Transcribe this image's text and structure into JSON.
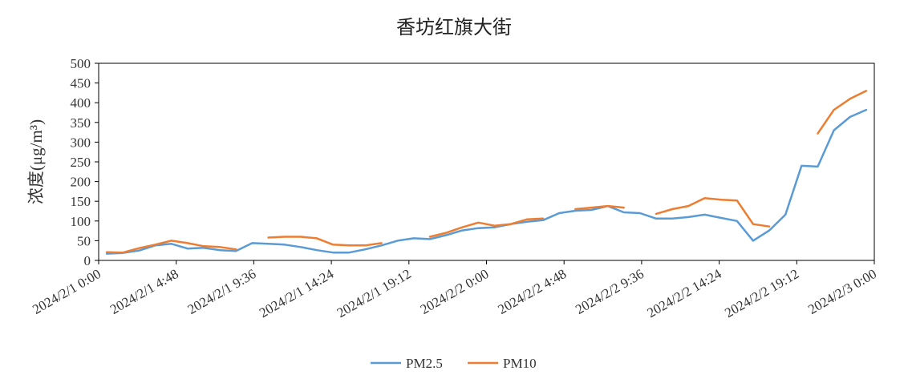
{
  "chart_data": {
    "type": "line",
    "title": "香坊红旗大街",
    "ylabel": "浓度(μg/m³)",
    "xlabel": "",
    "ylim": [
      0,
      500
    ],
    "yticks": [
      0,
      50,
      100,
      150,
      200,
      250,
      300,
      350,
      400,
      450,
      500
    ],
    "xtick_labels": [
      "2024/2/1 0:00",
      "2024/2/1 4:48",
      "2024/2/1 9:36",
      "2024/2/1 14:24",
      "2024/2/1 19:12",
      "2024/2/2 0:00",
      "2024/2/2 4:48",
      "2024/2/2 9:36",
      "2024/2/2 14:24",
      "2024/2/2 19:12",
      "2024/2/3 0:00"
    ],
    "xticks_hours": [
      0,
      4.8,
      9.6,
      14.4,
      19.2,
      24,
      28.8,
      33.6,
      38.4,
      43.2,
      48
    ],
    "grid": false,
    "legend": "bottom",
    "series": [
      {
        "name": "PM2.5",
        "color": "#5b9bd5",
        "values": [
          17,
          19,
          25,
          38,
          42,
          30,
          32,
          26,
          24,
          44,
          42,
          40,
          34,
          26,
          20,
          20,
          28,
          38,
          50,
          56,
          54,
          64,
          76,
          82,
          84,
          92,
          98,
          102,
          120,
          126,
          128,
          138,
          122,
          120,
          106,
          106,
          110,
          116,
          108,
          100,
          50,
          76,
          116,
          240,
          238,
          330,
          364,
          382
        ]
      },
      {
        "name": "PM10",
        "color": "#ed7d31",
        "values": [
          21,
          20,
          31,
          40,
          50,
          44,
          36,
          34,
          28,
          null,
          58,
          60,
          60,
          56,
          40,
          38,
          38,
          44,
          null,
          null,
          60,
          70,
          84,
          96,
          88,
          92,
          104,
          106,
          null,
          130,
          134,
          138,
          134,
          null,
          118,
          130,
          138,
          158,
          154,
          152,
          92,
          86,
          null,
          null,
          322,
          382,
          410,
          430
        ]
      }
    ]
  }
}
